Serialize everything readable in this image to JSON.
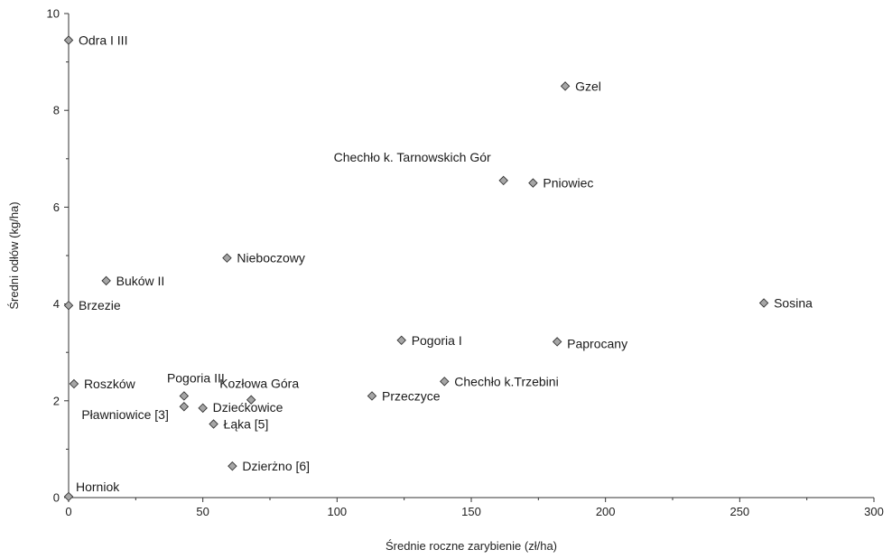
{
  "chart_data": {
    "type": "scatter",
    "title": "",
    "xlabel": "Średnie roczne zarybienie (zł/ha)",
    "ylabel": "Średni odłów (kg/ha)",
    "xlim": [
      0,
      300
    ],
    "ylim": [
      0,
      10
    ],
    "xticks": [
      0,
      50,
      100,
      150,
      200,
      250,
      300
    ],
    "yticks": [
      0,
      2,
      4,
      6,
      8,
      10
    ],
    "grid": false,
    "legend": "none",
    "marker_color": "#a6a6a6",
    "points": [
      {
        "label": "Odra I III",
        "x": 0,
        "y": 9.45
      },
      {
        "label": "Gzel",
        "x": 185,
        "y": 8.5
      },
      {
        "label": "Chechło k. Tarnowskich Gór",
        "x": 162,
        "y": 6.55
      },
      {
        "label": "Pniowiec",
        "x": 173,
        "y": 6.5
      },
      {
        "label": "Nieboczowy",
        "x": 59,
        "y": 4.95
      },
      {
        "label": "Buków II",
        "x": 14,
        "y": 4.48
      },
      {
        "label": "Brzezie",
        "x": 0,
        "y": 3.97
      },
      {
        "label": "Sosina",
        "x": 259,
        "y": 4.02
      },
      {
        "label": "Pogoria I",
        "x": 124,
        "y": 3.25
      },
      {
        "label": "Paprocany",
        "x": 182,
        "y": 3.22
      },
      {
        "label": "Roszków",
        "x": 2,
        "y": 2.35
      },
      {
        "label": "Chechło k.Trzebini",
        "x": 140,
        "y": 2.4
      },
      {
        "label": "Przeczyce",
        "x": 113,
        "y": 2.1
      },
      {
        "label": "Pogoria III",
        "x": 43,
        "y": 2.1
      },
      {
        "label": "Kozłowa Góra",
        "x": 68,
        "y": 2.02
      },
      {
        "label": "Pławniowice [3]",
        "x": 43,
        "y": 1.88
      },
      {
        "label": "Dziećkowice",
        "x": 50,
        "y": 1.85
      },
      {
        "label": "Łąka [5]",
        "x": 54,
        "y": 1.52
      },
      {
        "label": "Dzierżno [6]",
        "x": 61,
        "y": 0.65
      },
      {
        "label": "Horniok",
        "x": 0,
        "y": 0.02
      }
    ]
  }
}
